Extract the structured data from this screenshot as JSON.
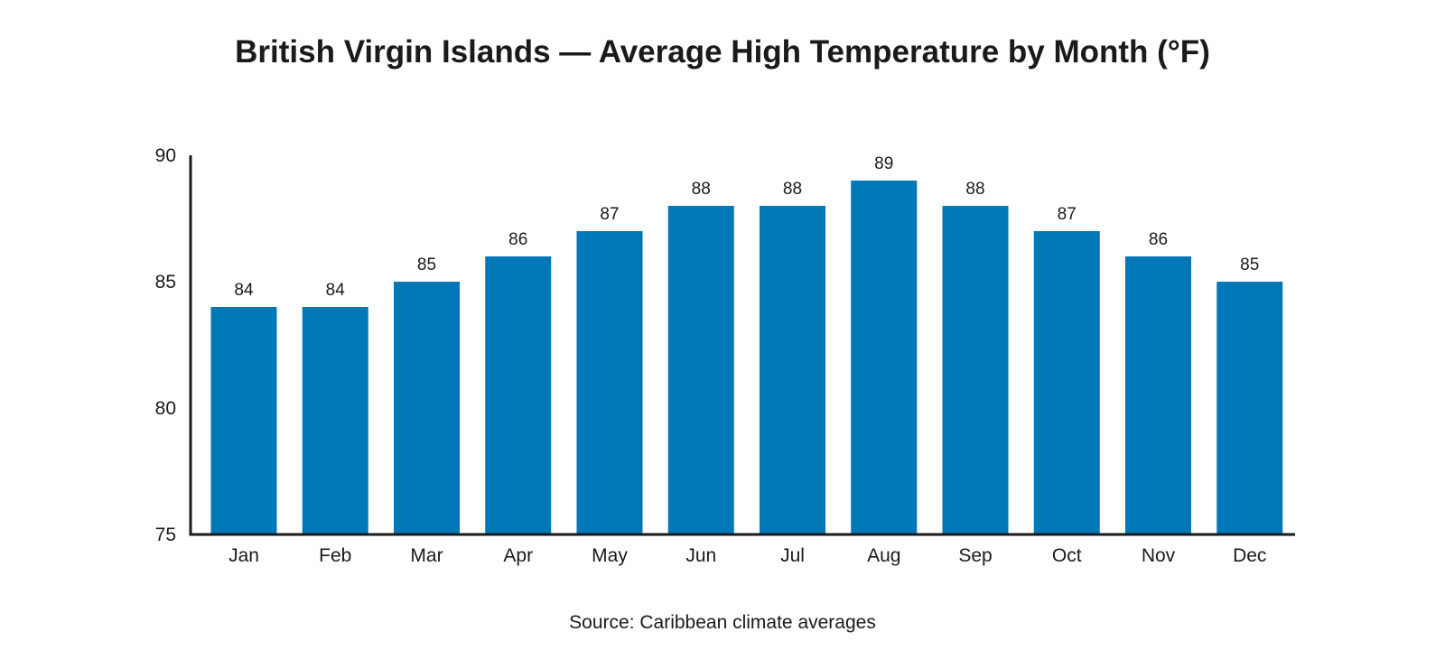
{
  "chart_data": {
    "type": "bar",
    "title": "British Virgin Islands — Average High Temperature by Month (°F)",
    "categories": [
      "Jan",
      "Feb",
      "Mar",
      "Apr",
      "May",
      "Jun",
      "Jul",
      "Aug",
      "Sep",
      "Oct",
      "Nov",
      "Dec"
    ],
    "values": [
      84,
      84,
      85,
      86,
      87,
      88,
      88,
      89,
      88,
      87,
      86,
      85
    ],
    "data_labels": [
      "84",
      "84",
      "85",
      "86",
      "87",
      "88",
      "88",
      "89",
      "88",
      "87",
      "86",
      "85"
    ],
    "xlabel": "",
    "ylabel": "",
    "ylim": [
      75,
      90
    ],
    "y_ticks": [
      75,
      80,
      85,
      90
    ],
    "y_tick_labels": [
      "75",
      "80",
      "85",
      "90"
    ],
    "grid": false,
    "legend": "none",
    "bar_color": "#0077b6",
    "axis_color": "#1a1a1a"
  },
  "source": "Source: Caribbean climate averages"
}
